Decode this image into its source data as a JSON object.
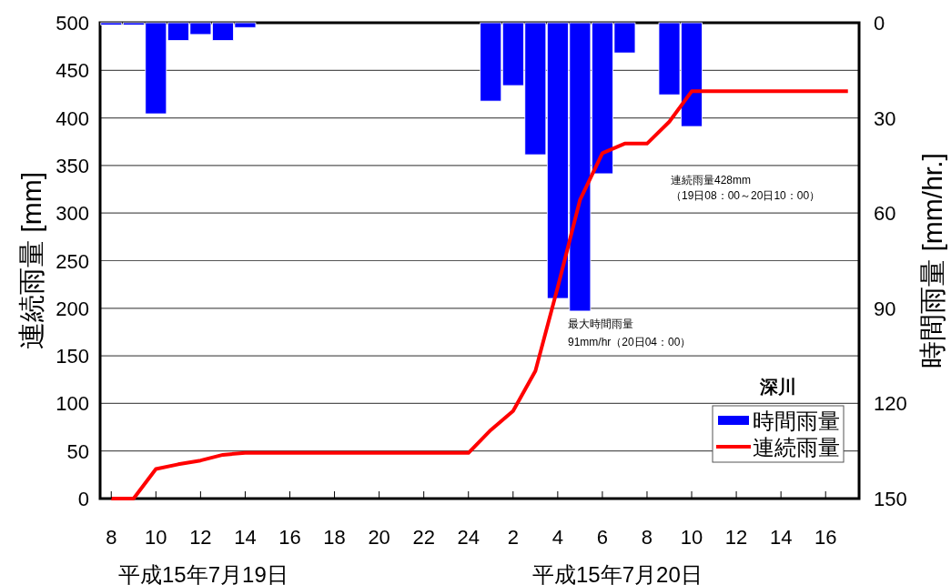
{
  "chart_data": {
    "type": "bar",
    "ylabel": "連続雨量 [mm]",
    "y2label": "時間雨量 [mm/hr.]",
    "legend_title": "深川",
    "xlim": [
      "--07-19T07:30",
      "--07-20T17:30"
    ],
    "xticks": [
      {
        "value": "--07-19T08:00",
        "label": "8"
      },
      {
        "value": "--07-19T10:00",
        "label": "10"
      },
      {
        "value": "--07-19T12:00",
        "label": "12"
      },
      {
        "value": "--07-19T14:00",
        "label": "14"
      },
      {
        "value": "--07-19T16:00",
        "label": "16"
      },
      {
        "value": "--07-19T18:00",
        "label": "18"
      },
      {
        "value": "--07-19T20:00",
        "label": "20"
      },
      {
        "value": "--07-19T22:00",
        "label": "22"
      },
      {
        "value": "--07-20T00:00",
        "label": "24"
      },
      {
        "value": "--07-20T02:00",
        "label": "2"
      },
      {
        "value": "--07-20T04:00",
        "label": "4"
      },
      {
        "value": "--07-20T06:00",
        "label": "6"
      },
      {
        "value": "--07-20T08:00",
        "label": "8"
      },
      {
        "value": "--07-20T10:00",
        "label": "10"
      },
      {
        "value": "--07-20T12:00",
        "label": "12"
      },
      {
        "value": "--07-20T14:00",
        "label": "14"
      },
      {
        "value": "--07-20T16:00",
        "label": "16"
      }
    ],
    "ylim": [
      0,
      500
    ],
    "yticks": [
      0,
      50,
      100,
      150,
      200,
      250,
      300,
      350,
      400,
      450,
      500
    ],
    "y2lim": [
      150,
      0
    ],
    "y2ticks": [
      0,
      30,
      60,
      90,
      120,
      150
    ],
    "grid": "y",
    "legend": "bottom right",
    "series": [
      {
        "name": "時間雨量",
        "axis": "y2",
        "color": "#0000ff",
        "x": [
          "--07-19T08:00",
          "--07-19T09:00",
          "--07-19T10:00",
          "--07-19T11:00",
          "--07-19T12:00",
          "--07-19T13:00",
          "--07-19T14:00",
          "--07-20T01:00",
          "--07-20T02:00",
          "--07-20T03:00",
          "--07-20T04:00",
          "--07-20T05:00",
          "--07-20T06:00",
          "--07-20T07:00",
          "--07-20T09:00",
          "--07-20T10:00"
        ],
        "values": [
          0.7,
          0.7,
          28.7,
          5.6,
          3.7,
          5.6,
          1.5,
          24.7,
          19.8,
          41.6,
          86.9,
          90.9,
          47.6,
          9.5,
          22.7,
          32.7
        ]
      },
      {
        "name": "連続雨量",
        "type": "line",
        "axis": "y",
        "color": "#ff0000",
        "x": [
          "--07-19T08:00",
          "--07-19T09:00",
          "--07-19T10:00",
          "--07-19T11:00",
          "--07-19T12:00",
          "--07-19T13:00",
          "--07-19T14:00",
          "--07-20T00:00",
          "--07-20T01:00",
          "--07-20T02:00",
          "--07-20T03:00",
          "--07-20T04:00",
          "--07-20T05:00",
          "--07-20T06:00",
          "--07-20T07:00",
          "--07-20T08:00",
          "--07-20T09:00",
          "--07-20T10:00",
          "--07-20T17:00"
        ],
        "values": [
          0,
          0,
          31,
          36,
          40,
          46,
          48,
          48,
          72,
          92,
          134,
          222,
          314,
          363,
          373,
          373,
          396,
          428,
          428
        ]
      }
    ],
    "annotations": [
      "連続雨量428mm",
      "（19日08：00～20日10：00）",
      "最大時間雨量",
      "91mm/hr（20日04：00）",
      "平成15年7月19日",
      "平成15年7月20日"
    ]
  }
}
